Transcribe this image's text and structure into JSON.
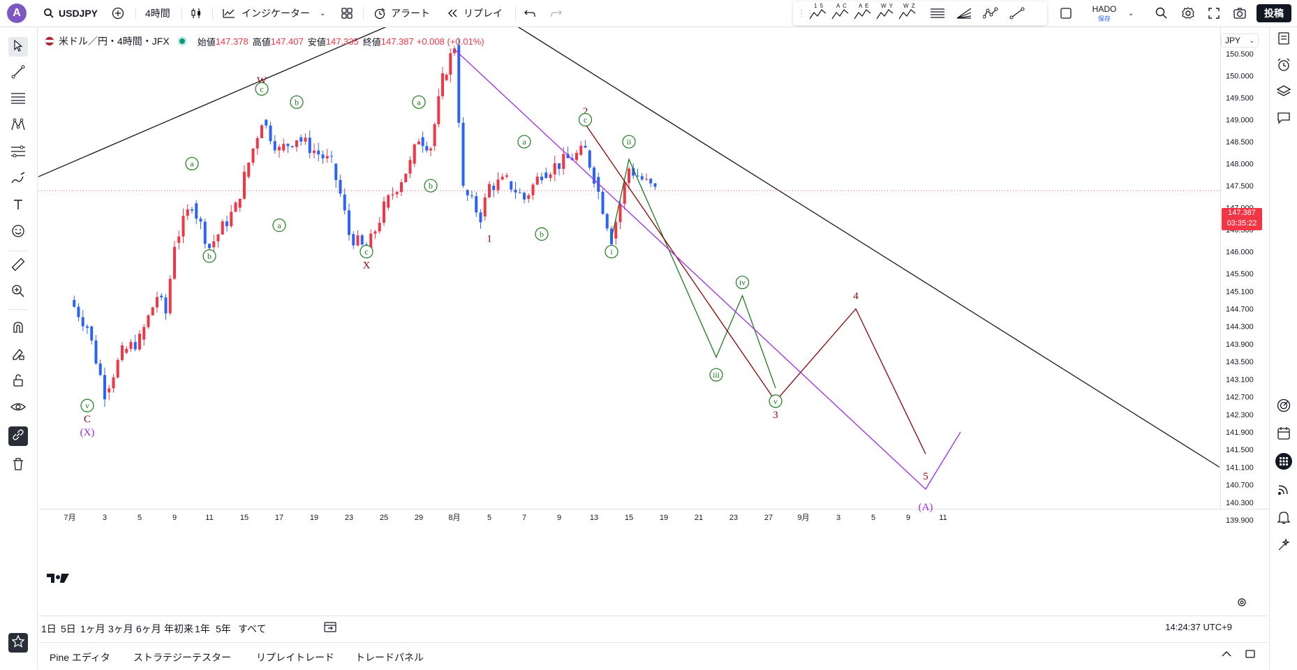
{
  "topbar": {
    "symbol": "USDJPY",
    "interval": "4時間",
    "indicators": "インジケーター",
    "alert": "アラート",
    "replay": "リプレイ",
    "layout_name": "HADO",
    "layout_status": "保存",
    "post": "投稿",
    "drawing_labels": [
      "1 5",
      "A C",
      "A E",
      "W Y",
      "W Z"
    ]
  },
  "legend": {
    "title": "米ドル／円・4時間・JFX",
    "open_label": "始値",
    "open": "147.378",
    "high_label": "高値",
    "high": "147.407",
    "low_label": "安値",
    "low": "147.335",
    "close_label": "終値",
    "close": "147.387",
    "change": "+0.008 (+0.01%)"
  },
  "price_axis": {
    "currency": "JPY",
    "last_price": "147.387",
    "countdown": "03:35:22"
  },
  "time_axis": {
    "timezone_clock": "14:24:37 UTC+9"
  },
  "range_buttons": [
    "1日",
    "5日",
    "1ヶ月",
    "3ヶ月",
    "6ヶ月",
    "年初来",
    "1年",
    "5年",
    "すべて"
  ],
  "bottom_tabs": [
    "Pine エディタ",
    "ストラテジーテスター",
    "リプレイトレード",
    "トレードパネル"
  ],
  "colors": {
    "up": "#f23645",
    "down": "#2962ff",
    "wave_green": "#1b7b1b",
    "wave_red": "#8b0000",
    "purple": "#9c27f0"
  },
  "chart_data": {
    "type": "candlestick",
    "title": "米ドル／円・4時間・JFX",
    "ylim": [
      139.6,
      151.0
    ],
    "y_ticks": [
      150.5,
      150.0,
      149.5,
      149.0,
      148.5,
      148.0,
      147.5,
      147.0,
      146.5,
      146.0,
      145.5,
      145.1,
      144.7,
      144.3,
      143.9,
      143.5,
      143.1,
      142.7,
      142.3,
      141.9,
      141.5,
      141.1,
      140.7,
      140.3,
      139.9
    ],
    "x_tick_labels": [
      "7月",
      "3",
      "5",
      "9",
      "11",
      "15",
      "17",
      "19",
      "23",
      "25",
      "29",
      "8月",
      "5",
      "7",
      "9",
      "13",
      "15",
      "19",
      "21",
      "23",
      "27",
      "9月",
      "3",
      "5",
      "9",
      "11"
    ],
    "price_path": [
      {
        "t": "07-01",
        "p": 144.9
      },
      {
        "t": "07-02",
        "p": 144.3
      },
      {
        "t": "07-03",
        "p": 142.8
      },
      {
        "t": "07-04",
        "p": 143.7
      },
      {
        "t": "07-05",
        "p": 144.0
      },
      {
        "t": "07-07",
        "p": 145.0
      },
      {
        "t": "07-08",
        "p": 144.6
      },
      {
        "t": "07-09",
        "p": 146.2
      },
      {
        "t": "07-10",
        "p": 147.1
      },
      {
        "t": "07-11",
        "p": 146.1
      },
      {
        "t": "07-14",
        "p": 147.0
      },
      {
        "t": "07-15",
        "p": 147.7
      },
      {
        "t": "07-16",
        "p": 149.0
      },
      {
        "t": "07-17",
        "p": 148.3
      },
      {
        "t": "07-18",
        "p": 148.6
      },
      {
        "t": "07-21",
        "p": 148.0
      },
      {
        "t": "07-22",
        "p": 147.3
      },
      {
        "t": "07-23",
        "p": 146.4
      },
      {
        "t": "07-24",
        "p": 146.0
      },
      {
        "t": "07-25",
        "p": 147.0
      },
      {
        "t": "07-28",
        "p": 148.0
      },
      {
        "t": "07-29",
        "p": 148.6
      },
      {
        "t": "07-30",
        "p": 148.4
      },
      {
        "t": "07-31",
        "p": 149.9
      },
      {
        "t": "08-01",
        "p": 150.7
      },
      {
        "t": "08-02",
        "p": 147.4
      },
      {
        "t": "08-04",
        "p": 146.8
      },
      {
        "t": "08-05",
        "p": 147.5
      },
      {
        "t": "08-06",
        "p": 147.6
      },
      {
        "t": "08-07",
        "p": 147.2
      },
      {
        "t": "08-08",
        "p": 147.8
      },
      {
        "t": "08-11",
        "p": 148.2
      },
      {
        "t": "08-12",
        "p": 148.3
      },
      {
        "t": "08-13",
        "p": 147.7
      },
      {
        "t": "08-14",
        "p": 146.3
      },
      {
        "t": "08-15",
        "p": 147.9
      },
      {
        "t": "08-18",
        "p": 147.387
      }
    ],
    "wave_labels": [
      {
        "text": "W",
        "t": "07-16",
        "p": 149.9,
        "color": "wave_red",
        "circled": false
      },
      {
        "text": "c",
        "t": "07-16",
        "p": 149.7,
        "color": "wave_green",
        "circled": true
      },
      {
        "text": "b",
        "t": "07-18",
        "p": 149.4,
        "color": "wave_green",
        "circled": true
      },
      {
        "text": "a",
        "t": "07-10",
        "p": 148.0,
        "color": "wave_green",
        "circled": true
      },
      {
        "text": "b",
        "t": "07-11",
        "p": 145.9,
        "color": "wave_green",
        "circled": true
      },
      {
        "text": "a",
        "t": "07-17",
        "p": 146.6,
        "color": "wave_green",
        "circled": true
      },
      {
        "text": "c",
        "t": "07-24",
        "p": 146.0,
        "color": "wave_green",
        "circled": true
      },
      {
        "text": "X",
        "t": "07-24",
        "p": 145.7,
        "color": "wave_red",
        "circled": false
      },
      {
        "text": "a",
        "t": "07-29",
        "p": 149.4,
        "color": "wave_green",
        "circled": true
      },
      {
        "text": "b",
        "t": "07-30",
        "p": 147.5,
        "color": "wave_green",
        "circled": true
      },
      {
        "text": "v",
        "t": "07-02",
        "p": 142.5,
        "color": "wave_green",
        "circled": true
      },
      {
        "text": "C",
        "t": "07-02",
        "p": 142.2,
        "color": "wave_red",
        "circled": false
      },
      {
        "text": "(X)",
        "t": "07-02",
        "p": 141.9,
        "color": "purple",
        "circled": false
      },
      {
        "text": "1",
        "t": "08-05",
        "p": 146.3,
        "color": "wave_red",
        "circled": false
      },
      {
        "text": "a",
        "t": "08-07",
        "p": 148.5,
        "color": "wave_green",
        "circled": true
      },
      {
        "text": "b",
        "t": "08-08",
        "p": 146.4,
        "color": "wave_green",
        "circled": true
      },
      {
        "text": "2",
        "t": "08-12",
        "p": 149.2,
        "color": "wave_red",
        "circled": false
      },
      {
        "text": "c",
        "t": "08-12",
        "p": 149.0,
        "color": "wave_green",
        "circled": true
      },
      {
        "text": "ii",
        "t": "08-15",
        "p": 148.5,
        "color": "wave_green",
        "circled": true
      },
      {
        "text": "i",
        "t": "08-14",
        "p": 146.0,
        "color": "wave_green",
        "circled": true
      },
      {
        "text": "iii",
        "t": "08-22",
        "p": 143.2,
        "color": "wave_green",
        "circled": true
      },
      {
        "text": "iv",
        "t": "08-24",
        "p": 145.3,
        "color": "wave_green",
        "circled": true
      },
      {
        "text": "v",
        "t": "08-28",
        "p": 142.6,
        "color": "wave_green",
        "circled": true
      },
      {
        "text": "3",
        "t": "08-28",
        "p": 142.3,
        "color": "wave_red",
        "circled": false
      },
      {
        "text": "4",
        "t": "09-04",
        "p": 145.0,
        "color": "wave_red",
        "circled": false
      },
      {
        "text": "5",
        "t": "09-10",
        "p": 140.9,
        "color": "wave_red",
        "circled": false
      },
      {
        "text": "(A)",
        "t": "09-10",
        "p": 140.2,
        "color": "purple",
        "circled": false
      }
    ],
    "projections": [
      {
        "name": "green",
        "points": [
          [
            "08-14",
            146.3
          ],
          [
            "08-15",
            148.1
          ],
          [
            "08-22",
            143.6
          ],
          [
            "08-24",
            145.0
          ],
          [
            "08-28",
            142.9
          ]
        ]
      },
      {
        "name": "red",
        "points": [
          [
            "08-12",
            148.9
          ],
          [
            "08-28",
            142.6
          ],
          [
            "09-04",
            144.7
          ],
          [
            "09-10",
            141.4
          ]
        ]
      },
      {
        "name": "purple",
        "points": [
          [
            "08-01",
            150.6
          ],
          [
            "09-10",
            140.6
          ],
          [
            "09-12",
            141.9
          ]
        ]
      }
    ]
  }
}
